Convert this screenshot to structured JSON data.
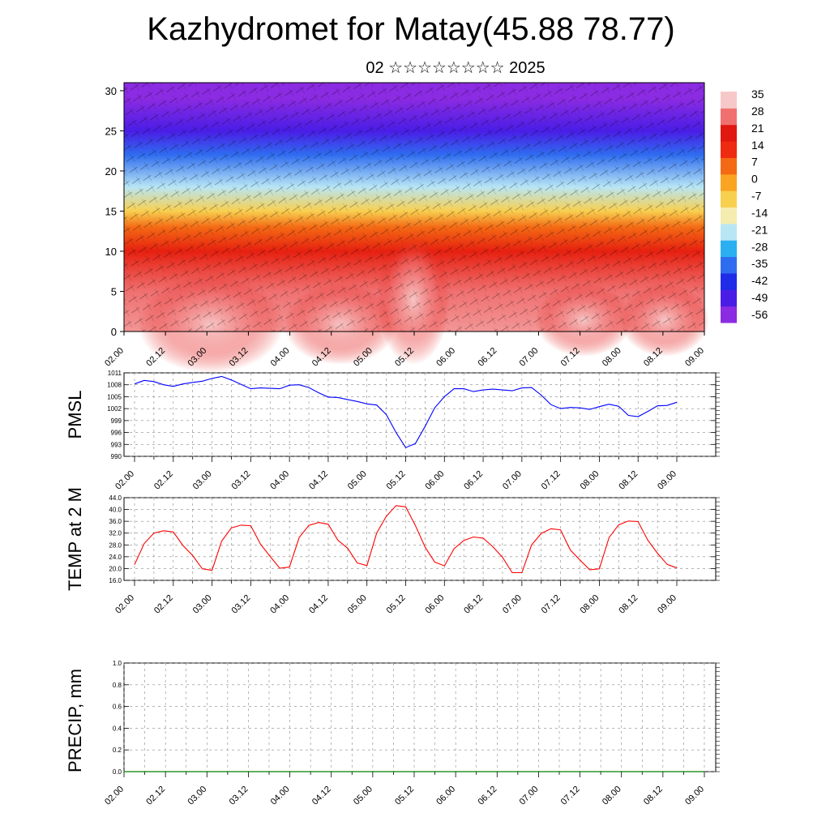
{
  "header": {
    "title": "Kazhydromet for Matay(45.88 78.77)",
    "subtitle": "02 ☆☆☆☆☆☆☆☆ 2025"
  },
  "time_labels": [
    "02.00",
    "02.12",
    "03.00",
    "03.12",
    "04.00",
    "04.12",
    "05.00",
    "05.12",
    "06.00",
    "06.12",
    "07.00",
    "07.12",
    "08.00",
    "08.12",
    "09.00"
  ],
  "colorbar": {
    "labels": [
      "35",
      "28",
      "21",
      "14",
      "7",
      "0",
      "-7",
      "-14",
      "-21",
      "-28",
      "-35",
      "-42",
      "-49",
      "-56"
    ],
    "colors": [
      "#8b2be2",
      "#4a1de6",
      "#1f2ce8",
      "#2f6df0",
      "#2ab0f0",
      "#b8e6f5",
      "#f5ecb0",
      "#f8d050",
      "#f9a521",
      "#f46a14",
      "#ee2a10",
      "#e01810",
      "#f07070",
      "#f7c8c8"
    ]
  },
  "chart_data": [
    {
      "type": "heatmap",
      "title": "Kazhydromet for Matay(45.88 78.77)",
      "x_categories": [
        "02.00",
        "02.12",
        "03.00",
        "03.12",
        "04.00",
        "04.12",
        "05.00",
        "05.12",
        "06.00",
        "06.12",
        "07.00",
        "07.12",
        "08.00",
        "08.12",
        "09.00"
      ],
      "ylim": [
        0,
        31
      ],
      "yticks": [
        0,
        5,
        10,
        15,
        20,
        25,
        30
      ],
      "value_range": [
        -56,
        35
      ],
      "description_layers": [
        {
          "height": 0,
          "value": 31
        },
        {
          "height": 5,
          "value": 28
        },
        {
          "height": 10,
          "value": 18
        },
        {
          "height": 13,
          "value": 7
        },
        {
          "height": 15,
          "value": -7
        },
        {
          "height": 18,
          "value": -21
        },
        {
          "height": 22,
          "value": -35
        },
        {
          "height": 25,
          "value": -49
        },
        {
          "height": 29,
          "value": -56
        }
      ],
      "overlay": "wind vectors"
    },
    {
      "type": "line",
      "ylabel": "PMSL",
      "ylim": [
        990,
        1011
      ],
      "yticks": [
        "990",
        "993",
        "996",
        "999",
        "1002",
        "1005",
        "1008",
        "1011"
      ],
      "x": [
        "02.00",
        "02.03",
        "02.06",
        "02.09",
        "02.12",
        "02.15",
        "02.18",
        "02.21",
        "03.00",
        "03.03",
        "03.06",
        "03.09",
        "03.12",
        "03.15",
        "03.18",
        "03.21",
        "04.00",
        "04.03",
        "04.06",
        "04.09",
        "04.12",
        "04.15",
        "04.18",
        "04.21",
        "05.00",
        "05.03",
        "05.06",
        "05.09",
        "05.12",
        "05.15",
        "05.18",
        "05.21",
        "06.00",
        "06.03",
        "06.06",
        "06.09",
        "06.12",
        "06.15",
        "06.18",
        "06.21",
        "07.00",
        "07.03",
        "07.06",
        "07.09",
        "07.12",
        "07.15",
        "07.18",
        "07.21",
        "08.00",
        "08.03",
        "08.06",
        "08.09",
        "08.12",
        "08.15",
        "08.18",
        "08.21",
        "09.00"
      ],
      "series": [
        {
          "color": "#0000ff",
          "values": [
            1008.2,
            1009.1,
            1008.8,
            1008.0,
            1007.6,
            1008.2,
            1008.6,
            1008.9,
            1009.6,
            1010.1,
            1009.2,
            1008.1,
            1007.0,
            1007.2,
            1007.1,
            1007.0,
            1007.9,
            1008.0,
            1007.3,
            1006.0,
            1004.9,
            1004.8,
            1004.3,
            1003.8,
            1003.2,
            1002.9,
            1000.5,
            996.0,
            992.2,
            993.2,
            997.5,
            1002.2,
            1005.0,
            1007.0,
            1007.0,
            1006.3,
            1006.7,
            1006.9,
            1006.7,
            1006.5,
            1007.2,
            1007.3,
            1005.4,
            1003.0,
            1002.0,
            1002.3,
            1002.2,
            1001.8,
            1002.5,
            1003.1,
            1002.6,
            1000.3,
            1000.0,
            1001.3,
            1002.7,
            1002.8,
            1003.6
          ]
        }
      ]
    },
    {
      "type": "line",
      "ylabel": "TEMP at 2 M",
      "ylim": [
        16,
        44
      ],
      "yticks": [
        "16.0",
        "20.0",
        "24.0",
        "28.0",
        "32.0",
        "36.0",
        "40.0",
        "44.0"
      ],
      "x": [
        "02.00",
        "02.03",
        "02.06",
        "02.09",
        "02.12",
        "02.15",
        "02.18",
        "02.21",
        "03.00",
        "03.03",
        "03.06",
        "03.09",
        "03.12",
        "03.15",
        "03.18",
        "03.21",
        "04.00",
        "04.03",
        "04.06",
        "04.09",
        "04.12",
        "04.15",
        "04.18",
        "04.21",
        "05.00",
        "05.03",
        "05.06",
        "05.09",
        "05.12",
        "05.15",
        "05.18",
        "05.21",
        "06.00",
        "06.03",
        "06.06",
        "06.09",
        "06.12",
        "06.15",
        "06.18",
        "06.21",
        "07.00",
        "07.03",
        "07.06",
        "07.09",
        "07.12",
        "07.15",
        "07.18",
        "07.21",
        "08.00",
        "08.03",
        "08.06",
        "08.09",
        "08.12",
        "08.15",
        "08.18",
        "08.21",
        "09.00"
      ],
      "series": [
        {
          "color": "#ff0000",
          "values": [
            21.3,
            28.5,
            32.0,
            32.8,
            32.4,
            27.8,
            24.4,
            19.9,
            19.4,
            29.3,
            33.8,
            34.7,
            34.5,
            28.3,
            24.1,
            20.1,
            20.5,
            30.5,
            34.6,
            35.6,
            35.0,
            29.6,
            26.9,
            21.9,
            21.0,
            32.0,
            37.7,
            41.3,
            40.9,
            34.6,
            27.3,
            22.2,
            20.9,
            26.7,
            29.5,
            30.7,
            30.3,
            27.4,
            23.8,
            18.6,
            18.6,
            28.0,
            31.9,
            33.5,
            33.1,
            26.3,
            22.9,
            19.6,
            19.9,
            30.5,
            34.8,
            36.1,
            35.9,
            29.6,
            25.2,
            21.4,
            20.2
          ]
        }
      ]
    },
    {
      "type": "line",
      "ylabel": "PRECIP, mm",
      "ylim": [
        0,
        1
      ],
      "yticks": [
        "0.0",
        "0.2",
        "0.4",
        "0.6",
        "0.8",
        "1.0"
      ],
      "x": [
        "02.00",
        "02.12",
        "03.00",
        "03.12",
        "04.00",
        "04.12",
        "05.00",
        "05.12",
        "06.00",
        "06.12",
        "07.00",
        "07.12",
        "08.00",
        "08.12",
        "09.00"
      ],
      "series": [
        {
          "color": "#008000",
          "values": [
            0,
            0,
            0,
            0,
            0,
            0,
            0,
            0,
            0,
            0,
            0,
            0,
            0,
            0,
            0
          ]
        }
      ]
    }
  ]
}
